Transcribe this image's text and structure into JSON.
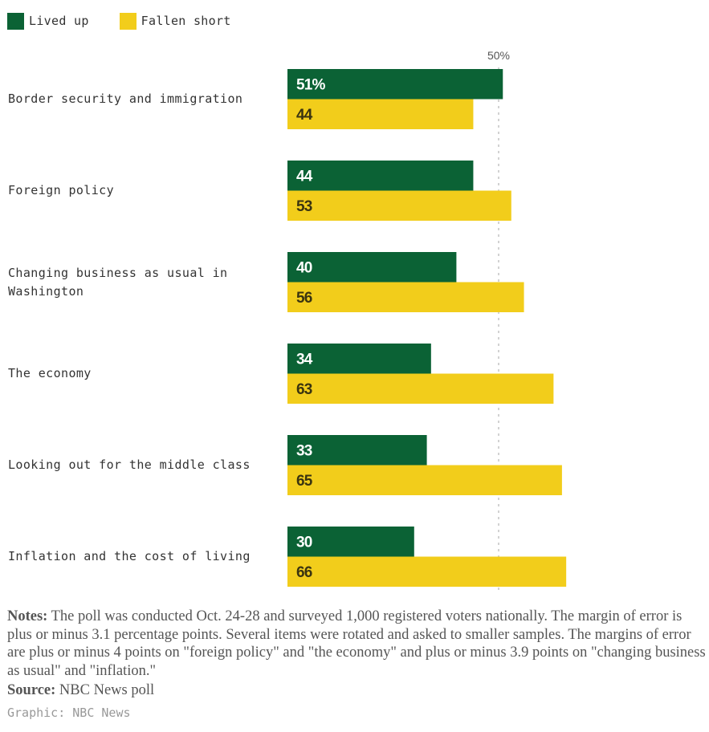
{
  "legend": [
    {
      "label": "Lived up",
      "color": "#0b6235"
    },
    {
      "label": "Fallen short",
      "color": "#f2cd1b"
    }
  ],
  "chart_data": {
    "type": "bar",
    "orientation": "horizontal",
    "categories": [
      "Border security and immigration",
      "Foreign policy",
      "Changing business as usual in Washington",
      "The economy",
      "Looking out for the middle class",
      "Inflation and the cost of living"
    ],
    "series": [
      {
        "name": "Lived up",
        "color": "#0b6235",
        "values": [
          51,
          44,
          40,
          34,
          33,
          30
        ]
      },
      {
        "name": "Fallen short",
        "color": "#f2cd1b",
        "values": [
          44,
          53,
          56,
          63,
          65,
          66
        ]
      }
    ],
    "first_label_suffix": "%",
    "reference_line": {
      "value": 50,
      "label": "50%"
    },
    "xlim": [
      0,
      100
    ],
    "legend_position": "top-left",
    "grid": false
  },
  "notes": {
    "label": "Notes:",
    "text": " The poll was conducted Oct. 24-28 and surveyed 1,000 registered voters nationally. The margin of error is plus or minus 3.1 percentage points. Several items were rotated and asked to smaller samples. The margins of error are plus or minus 4 points on \"foreign policy\" and \"the economy\" and plus or minus 3.9 points on \"changing business as usual\" and \"inflation.\""
  },
  "source": {
    "label": "Source:",
    "text": " NBC News poll"
  },
  "credit": "Graphic: NBC News"
}
